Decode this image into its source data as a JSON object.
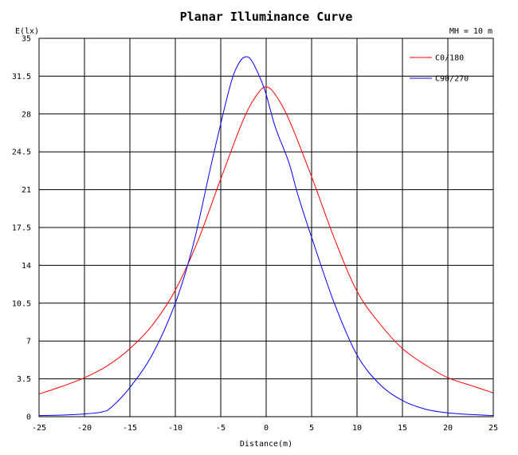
{
  "chart_data": {
    "type": "line",
    "title": "Planar Illuminance Curve",
    "annotation": "MH = 10 m",
    "xlabel": "Distance(m)",
    "ylabel": "E(lx)",
    "xlim": [
      -25,
      25
    ],
    "ylim": [
      0,
      35
    ],
    "x_ticks": [
      -25,
      -20,
      -15,
      -10,
      -5,
      0,
      5,
      10,
      15,
      20,
      25
    ],
    "x_tick_labels": [
      "-25",
      "-20",
      "-15",
      "-10",
      "-5",
      "0",
      "5",
      "10",
      "15",
      "20",
      "25"
    ],
    "y_ticks": [
      0,
      3.5,
      7,
      10.5,
      14,
      17.5,
      21,
      24.5,
      28,
      31.5,
      35
    ],
    "y_tick_labels": [
      "0",
      "3.5",
      "7",
      "10.5",
      "14",
      "17.5",
      "21",
      "24.5",
      "28",
      "31.5",
      "35"
    ],
    "grid": true,
    "legend_position": "top-right",
    "series": [
      {
        "name": "C0/180",
        "color": "#ff0000",
        "x": [
          -25,
          -22.5,
          -20,
          -17.5,
          -15,
          -12.5,
          -10,
          -7.5,
          -5,
          -2.5,
          -1,
          0,
          1,
          2.5,
          5,
          7.5,
          10,
          12.5,
          15,
          17.5,
          20,
          22.5,
          25
        ],
        "y": [
          2.1,
          2.8,
          3.6,
          4.7,
          6.3,
          8.5,
          11.7,
          16.3,
          22.0,
          27.5,
          29.8,
          30.5,
          29.8,
          27.5,
          22.2,
          16.5,
          11.6,
          8.6,
          6.3,
          4.8,
          3.6,
          2.9,
          2.2
        ]
      },
      {
        "name": "C90/270",
        "color": "#0000ff",
        "x": [
          -25,
          -22.5,
          -20,
          -18,
          -17,
          -15,
          -12.5,
          -10,
          -8,
          -6,
          -4,
          -3,
          -2.2,
          -1.5,
          -0.5,
          0,
          1,
          2.5,
          3.5,
          5,
          7.5,
          10,
          12.5,
          15,
          17.5,
          20,
          22.5,
          25
        ],
        "y": [
          0.1,
          0.15,
          0.25,
          0.45,
          0.9,
          2.7,
          5.8,
          10.5,
          16.0,
          23.5,
          30.5,
          32.7,
          33.3,
          32.8,
          31.0,
          29.8,
          26.8,
          23.5,
          20.5,
          16.6,
          10.5,
          5.7,
          3.0,
          1.5,
          0.7,
          0.35,
          0.2,
          0.1
        ]
      }
    ]
  }
}
